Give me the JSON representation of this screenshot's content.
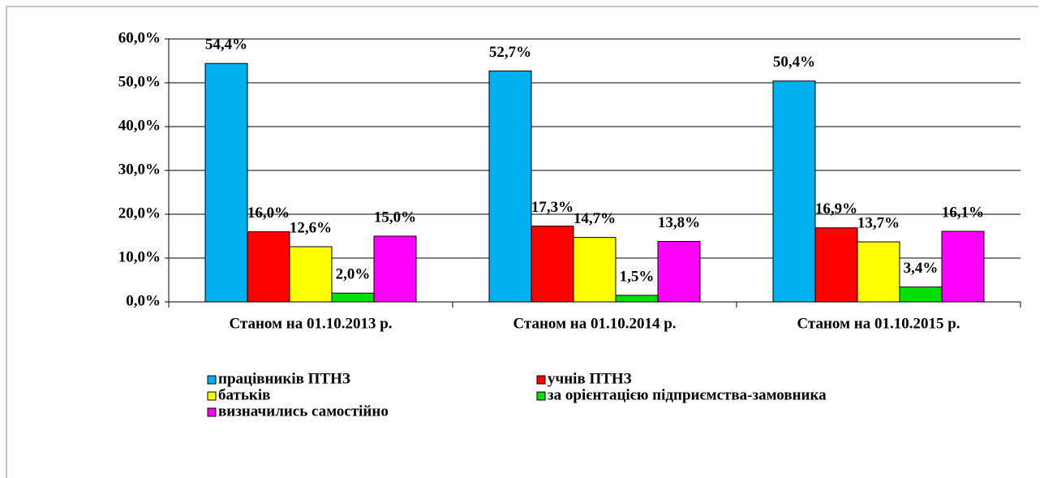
{
  "chart_data": {
    "type": "bar",
    "categories": [
      "Станом на 01.10.2013 р.",
      "Станом на 01.10.2014 р.",
      "Станом на 01.10.2015 р."
    ],
    "series": [
      {
        "name": "працівників ПТНЗ",
        "color": "#00b0f0",
        "values": [
          54.4,
          52.7,
          50.4
        ],
        "value_labels": [
          "54,4%",
          "52,7%",
          "50,4%"
        ]
      },
      {
        "name": "учнів ПТНЗ",
        "color": "#ff0000",
        "values": [
          16.0,
          17.3,
          16.9
        ],
        "value_labels": [
          "16,0%",
          "17,3%",
          "16,9%"
        ]
      },
      {
        "name": "батьків",
        "color": "#ffff00",
        "values": [
          12.6,
          14.7,
          13.7
        ],
        "value_labels": [
          "12,6%",
          "14,7%",
          "13,7%"
        ]
      },
      {
        "name": "за орієнтацією підприємства-замовника",
        "color": "#00e000",
        "values": [
          2.0,
          1.5,
          3.4
        ],
        "value_labels": [
          "2,0%",
          "1,5%",
          "3,4%"
        ]
      },
      {
        "name": "визначились самостійно",
        "color": "#ff00ff",
        "values": [
          15.0,
          13.8,
          16.1
        ],
        "value_labels": [
          "15,0%",
          "13,8%",
          "16,1%"
        ]
      }
    ],
    "ylim": [
      0,
      60
    ],
    "yticks": [
      {
        "value": 0,
        "label": "0,0%"
      },
      {
        "value": 10,
        "label": "10,0%"
      },
      {
        "value": 20,
        "label": "20,0%"
      },
      {
        "value": 30,
        "label": "30,0%"
      },
      {
        "value": 40,
        "label": "40,0%"
      },
      {
        "value": 50,
        "label": "50,0%"
      },
      {
        "value": 60,
        "label": "60,0%"
      }
    ],
    "grid": true
  }
}
